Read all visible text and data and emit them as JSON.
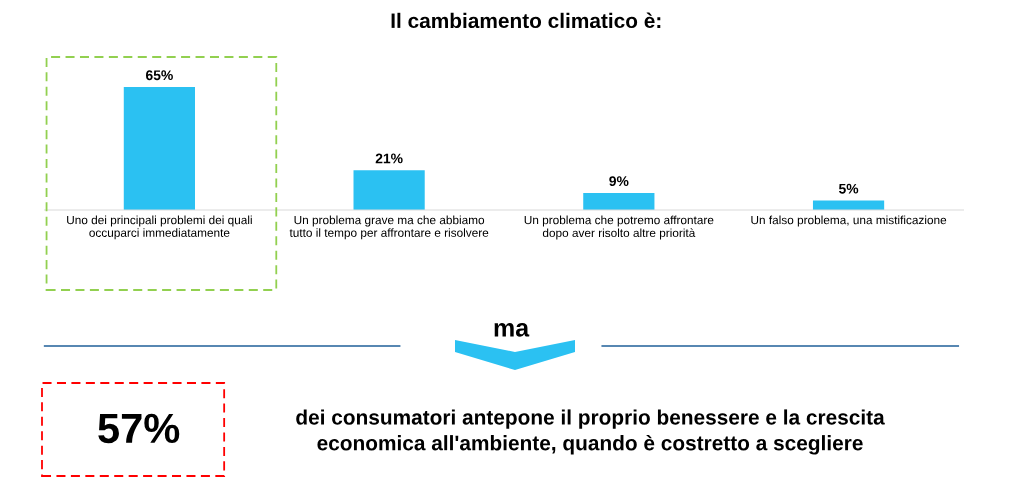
{
  "chart_data": {
    "type": "bar",
    "title": "Il cambiamento climatico è:",
    "categories": [
      "Uno dei principali problemi dei quali\noccuparci immediatamente",
      "Un problema grave ma che abbiamo\ntutto il tempo per affrontare e risolvere",
      "Un problema che potremo affrontare\ndopo aver risolto altre priorità",
      "Un falso problema, una mistificazione"
    ],
    "values": [
      65,
      21,
      9,
      5
    ],
    "value_labels": [
      "65%",
      "21%",
      "9%",
      "5%"
    ],
    "color": "#2bc1f2",
    "annotations": [
      "ma",
      "57%",
      "dei consumatori antepone il proprio benessere e la crescita\neconomica all'ambiente, quando è costretto a scegliere"
    ]
  }
}
